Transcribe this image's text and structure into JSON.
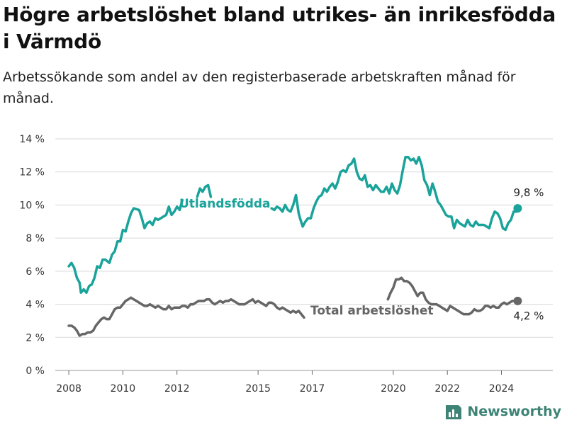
{
  "title": "Högre arbetslöshet bland utrikes- än inrikesfödda i Värmdö",
  "subtitle": "Arbetssökande som andel av den registerbaserade arbetskraften månad för månad.",
  "brand": {
    "name": "Newsworthy",
    "icon": "newsworthy-logo-icon",
    "color": "#3e8476"
  },
  "chart_data": {
    "type": "line",
    "title": "Högre arbetslöshet bland utrikes- än inrikesfödda i Värmdö",
    "ylim": [
      0,
      14
    ],
    "yticks": [
      0,
      2,
      4,
      6,
      8,
      10,
      12,
      14
    ],
    "ytick_labels": [
      "0 %",
      "2 %",
      "4 %",
      "6 %",
      "8 %",
      "10 %",
      "12 %",
      "14 %"
    ],
    "xlim": [
      2007.5,
      2025.9
    ],
    "xticks": [
      2008,
      2010,
      2012,
      2015,
      2017,
      2020,
      2022,
      2024
    ],
    "xtick_labels": [
      "2008",
      "2010",
      "2012",
      "2015",
      "2017",
      "2020",
      "2022",
      "2024"
    ],
    "grid": "horizontal",
    "series": [
      {
        "name": "Utlandsfödda",
        "color": "#1aa39a",
        "end_label": "9,8 %",
        "points": [
          [
            2008.0,
            6.3
          ],
          [
            2008.1,
            6.5
          ],
          [
            2008.2,
            6.2
          ],
          [
            2008.3,
            5.6
          ],
          [
            2008.4,
            5.3
          ],
          [
            2008.45,
            4.7
          ],
          [
            2008.55,
            4.9
          ],
          [
            2008.65,
            4.7
          ],
          [
            2008.75,
            5.1
          ],
          [
            2008.85,
            5.2
          ],
          [
            2008.95,
            5.6
          ],
          [
            2009.05,
            6.3
          ],
          [
            2009.15,
            6.2
          ],
          [
            2009.25,
            6.7
          ],
          [
            2009.35,
            6.7
          ],
          [
            2009.5,
            6.5
          ],
          [
            2009.6,
            7.0
          ],
          [
            2009.7,
            7.2
          ],
          [
            2009.8,
            7.8
          ],
          [
            2009.9,
            7.8
          ],
          [
            2010.0,
            8.5
          ],
          [
            2010.1,
            8.4
          ],
          [
            2010.2,
            9.0
          ],
          [
            2010.3,
            9.5
          ],
          [
            2010.4,
            9.8
          ],
          [
            2010.5,
            9.75
          ],
          [
            2010.6,
            9.7
          ],
          [
            2010.7,
            9.2
          ],
          [
            2010.8,
            8.6
          ],
          [
            2010.9,
            8.9
          ],
          [
            2011.0,
            9.0
          ],
          [
            2011.1,
            8.8
          ],
          [
            2011.2,
            9.2
          ],
          [
            2011.3,
            9.1
          ],
          [
            2011.4,
            9.2
          ],
          [
            2011.5,
            9.3
          ],
          [
            2011.6,
            9.4
          ],
          [
            2011.7,
            9.9
          ],
          [
            2011.8,
            9.4
          ],
          [
            2011.9,
            9.6
          ],
          [
            2012.0,
            9.9
          ],
          [
            2012.1,
            9.7
          ],
          [
            2012.2,
            10.3
          ]
        ],
        "segments_visible": [
          [
            [
              2012.75,
              10.5
            ],
            [
              2012.85,
              11.0
            ],
            [
              2012.95,
              10.8
            ],
            [
              2013.05,
              11.1
            ],
            [
              2013.15,
              11.2
            ],
            [
              2013.25,
              10.5
            ]
          ],
          [
            [
              2015.5,
              9.8
            ],
            [
              2015.6,
              9.7
            ],
            [
              2015.7,
              9.9
            ],
            [
              2015.8,
              9.8
            ],
            [
              2015.9,
              9.6
            ],
            [
              2016.0,
              10.0
            ],
            [
              2016.1,
              9.7
            ],
            [
              2016.2,
              9.6
            ],
            [
              2016.3,
              10.0
            ],
            [
              2016.4,
              10.6
            ],
            [
              2016.5,
              9.5
            ],
            [
              2016.55,
              9.2
            ],
            [
              2016.65,
              8.7
            ],
            [
              2016.75,
              9.0
            ],
            [
              2016.85,
              9.2
            ],
            [
              2016.95,
              9.2
            ],
            [
              2017.05,
              9.8
            ],
            [
              2017.15,
              10.2
            ],
            [
              2017.25,
              10.5
            ],
            [
              2017.35,
              10.6
            ],
            [
              2017.45,
              11.0
            ],
            [
              2017.55,
              10.8
            ],
            [
              2017.65,
              11.1
            ],
            [
              2017.75,
              11.3
            ],
            [
              2017.85,
              11.0
            ],
            [
              2017.95,
              11.4
            ],
            [
              2018.05,
              12.0
            ],
            [
              2018.15,
              12.1
            ],
            [
              2018.25,
              12.0
            ],
            [
              2018.35,
              12.4
            ],
            [
              2018.45,
              12.5
            ],
            [
              2018.55,
              12.8
            ],
            [
              2018.65,
              12.0
            ],
            [
              2018.75,
              11.6
            ],
            [
              2018.85,
              11.5
            ],
            [
              2018.95,
              11.8
            ],
            [
              2019.05,
              11.1
            ],
            [
              2019.15,
              11.2
            ],
            [
              2019.25,
              10.9
            ],
            [
              2019.35,
              11.2
            ],
            [
              2019.45,
              11.0
            ],
            [
              2019.55,
              10.8
            ],
            [
              2019.65,
              10.8
            ],
            [
              2019.75,
              11.1
            ],
            [
              2019.85,
              10.7
            ],
            [
              2019.95,
              11.3
            ],
            [
              2020.05,
              10.9
            ],
            [
              2020.15,
              10.7
            ],
            [
              2020.25,
              11.2
            ],
            [
              2020.35,
              12.1
            ],
            [
              2020.45,
              12.9
            ],
            [
              2020.55,
              12.9
            ],
            [
              2020.65,
              12.7
            ],
            [
              2020.75,
              12.8
            ],
            [
              2020.85,
              12.5
            ],
            [
              2020.95,
              12.9
            ],
            [
              2021.05,
              12.4
            ],
            [
              2021.15,
              11.5
            ],
            [
              2021.25,
              11.2
            ],
            [
              2021.35,
              10.6
            ],
            [
              2021.45,
              11.3
            ],
            [
              2021.55,
              10.8
            ],
            [
              2021.65,
              10.2
            ],
            [
              2021.75,
              10.0
            ],
            [
              2021.85,
              9.7
            ],
            [
              2021.95,
              9.4
            ],
            [
              2022.05,
              9.3
            ],
            [
              2022.15,
              9.3
            ],
            [
              2022.25,
              8.6
            ],
            [
              2022.35,
              9.1
            ],
            [
              2022.45,
              8.9
            ],
            [
              2022.55,
              8.8
            ],
            [
              2022.65,
              8.7
            ],
            [
              2022.75,
              9.1
            ],
            [
              2022.85,
              8.8
            ],
            [
              2022.95,
              8.7
            ],
            [
              2023.05,
              9.0
            ],
            [
              2023.15,
              8.8
            ],
            [
              2023.25,
              8.8
            ],
            [
              2023.35,
              8.8
            ],
            [
              2023.45,
              8.7
            ],
            [
              2023.55,
              8.6
            ],
            [
              2023.65,
              9.2
            ],
            [
              2023.75,
              9.6
            ],
            [
              2023.85,
              9.5
            ],
            [
              2023.95,
              9.2
            ],
            [
              2024.05,
              8.6
            ],
            [
              2024.15,
              8.5
            ],
            [
              2024.25,
              8.9
            ],
            [
              2024.35,
              9.1
            ],
            [
              2024.45,
              9.6
            ],
            [
              2024.55,
              9.6
            ],
            [
              2024.6,
              9.8
            ]
          ]
        ],
        "end_point": [
          2024.6,
          9.8
        ]
      },
      {
        "name": "Total arbetslöshet",
        "color": "#666666",
        "end_label": "4,2 %",
        "points": [
          [
            2008.0,
            2.7
          ],
          [
            2008.1,
            2.7
          ],
          [
            2008.2,
            2.6
          ],
          [
            2008.3,
            2.4
          ],
          [
            2008.4,
            2.1
          ],
          [
            2008.5,
            2.2
          ],
          [
            2008.6,
            2.2
          ],
          [
            2008.7,
            2.3
          ],
          [
            2008.8,
            2.3
          ],
          [
            2008.9,
            2.4
          ],
          [
            2009.0,
            2.7
          ],
          [
            2009.1,
            2.9
          ],
          [
            2009.2,
            3.1
          ],
          [
            2009.3,
            3.2
          ],
          [
            2009.4,
            3.1
          ],
          [
            2009.5,
            3.1
          ],
          [
            2009.6,
            3.4
          ],
          [
            2009.7,
            3.7
          ],
          [
            2009.8,
            3.8
          ],
          [
            2009.9,
            3.8
          ],
          [
            2010.0,
            4.0
          ],
          [
            2010.1,
            4.2
          ],
          [
            2010.2,
            4.3
          ],
          [
            2010.3,
            4.4
          ],
          [
            2010.4,
            4.3
          ],
          [
            2010.5,
            4.2
          ],
          [
            2010.6,
            4.1
          ],
          [
            2010.7,
            4.0
          ],
          [
            2010.8,
            3.9
          ],
          [
            2010.9,
            3.9
          ],
          [
            2011.0,
            4.0
          ],
          [
            2011.1,
            3.9
          ],
          [
            2011.2,
            3.8
          ],
          [
            2011.3,
            3.9
          ],
          [
            2011.4,
            3.8
          ],
          [
            2011.5,
            3.7
          ],
          [
            2011.6,
            3.7
          ],
          [
            2011.7,
            3.9
          ],
          [
            2011.8,
            3.7
          ],
          [
            2011.9,
            3.8
          ],
          [
            2012.0,
            3.8
          ],
          [
            2012.1,
            3.8
          ],
          [
            2012.2,
            3.9
          ],
          [
            2012.3,
            3.9
          ],
          [
            2012.4,
            3.8
          ],
          [
            2012.5,
            4.0
          ],
          [
            2012.6,
            4.0
          ],
          [
            2012.7,
            4.1
          ],
          [
            2012.8,
            4.2
          ],
          [
            2012.9,
            4.2
          ],
          [
            2013.0,
            4.2
          ],
          [
            2013.1,
            4.3
          ],
          [
            2013.2,
            4.3
          ],
          [
            2013.3,
            4.1
          ],
          [
            2013.4,
            4.0
          ],
          [
            2013.5,
            4.1
          ],
          [
            2013.6,
            4.2
          ],
          [
            2013.7,
            4.1
          ],
          [
            2013.8,
            4.2
          ],
          [
            2013.9,
            4.2
          ],
          [
            2014.0,
            4.3
          ],
          [
            2014.1,
            4.2
          ],
          [
            2014.2,
            4.1
          ],
          [
            2014.3,
            4.0
          ],
          [
            2014.4,
            4.0
          ],
          [
            2014.5,
            4.0
          ],
          [
            2014.6,
            4.1
          ],
          [
            2014.7,
            4.2
          ],
          [
            2014.8,
            4.3
          ],
          [
            2014.9,
            4.1
          ],
          [
            2015.0,
            4.2
          ],
          [
            2015.1,
            4.1
          ],
          [
            2015.2,
            4.0
          ],
          [
            2015.3,
            3.9
          ],
          [
            2015.4,
            4.1
          ],
          [
            2015.5,
            4.1
          ],
          [
            2015.6,
            4.0
          ],
          [
            2015.7,
            3.8
          ],
          [
            2015.8,
            3.7
          ],
          [
            2015.9,
            3.8
          ],
          [
            2016.0,
            3.7
          ],
          [
            2016.1,
            3.6
          ],
          [
            2016.2,
            3.5
          ],
          [
            2016.3,
            3.6
          ],
          [
            2016.4,
            3.5
          ],
          [
            2016.5,
            3.6
          ],
          [
            2016.6,
            3.4
          ],
          [
            2016.7,
            3.2
          ]
        ],
        "segments_visible": [
          [
            [
              2019.8,
              4.3
            ],
            [
              2019.9,
              4.7
            ],
            [
              2020.0,
              5.0
            ],
            [
              2020.1,
              5.5
            ],
            [
              2020.2,
              5.5
            ],
            [
              2020.3,
              5.6
            ],
            [
              2020.4,
              5.4
            ],
            [
              2020.5,
              5.4
            ],
            [
              2020.6,
              5.3
            ],
            [
              2020.7,
              5.1
            ],
            [
              2020.8,
              4.8
            ],
            [
              2020.9,
              4.5
            ],
            [
              2021.0,
              4.7
            ],
            [
              2021.1,
              4.7
            ],
            [
              2021.2,
              4.3
            ],
            [
              2021.3,
              4.1
            ],
            [
              2021.4,
              4.0
            ],
            [
              2021.5,
              4.0
            ],
            [
              2021.6,
              4.0
            ],
            [
              2021.7,
              3.9
            ],
            [
              2021.8,
              3.8
            ],
            [
              2021.9,
              3.7
            ],
            [
              2022.0,
              3.6
            ],
            [
              2022.1,
              3.9
            ],
            [
              2022.2,
              3.8
            ],
            [
              2022.3,
              3.7
            ],
            [
              2022.4,
              3.6
            ],
            [
              2022.5,
              3.5
            ],
            [
              2022.6,
              3.4
            ],
            [
              2022.7,
              3.4
            ],
            [
              2022.8,
              3.4
            ],
            [
              2022.9,
              3.5
            ],
            [
              2023.0,
              3.7
            ],
            [
              2023.1,
              3.6
            ],
            [
              2023.2,
              3.6
            ],
            [
              2023.3,
              3.7
            ],
            [
              2023.4,
              3.9
            ],
            [
              2023.5,
              3.9
            ],
            [
              2023.6,
              3.8
            ],
            [
              2023.7,
              3.9
            ],
            [
              2023.8,
              3.8
            ],
            [
              2023.9,
              3.8
            ],
            [
              2024.0,
              4.0
            ],
            [
              2024.1,
              4.1
            ],
            [
              2024.2,
              4.0
            ],
            [
              2024.3,
              4.1
            ],
            [
              2024.4,
              4.2
            ],
            [
              2024.5,
              4.2
            ],
            [
              2024.6,
              4.2
            ]
          ]
        ],
        "end_point": [
          2024.6,
          4.2
        ]
      }
    ]
  }
}
